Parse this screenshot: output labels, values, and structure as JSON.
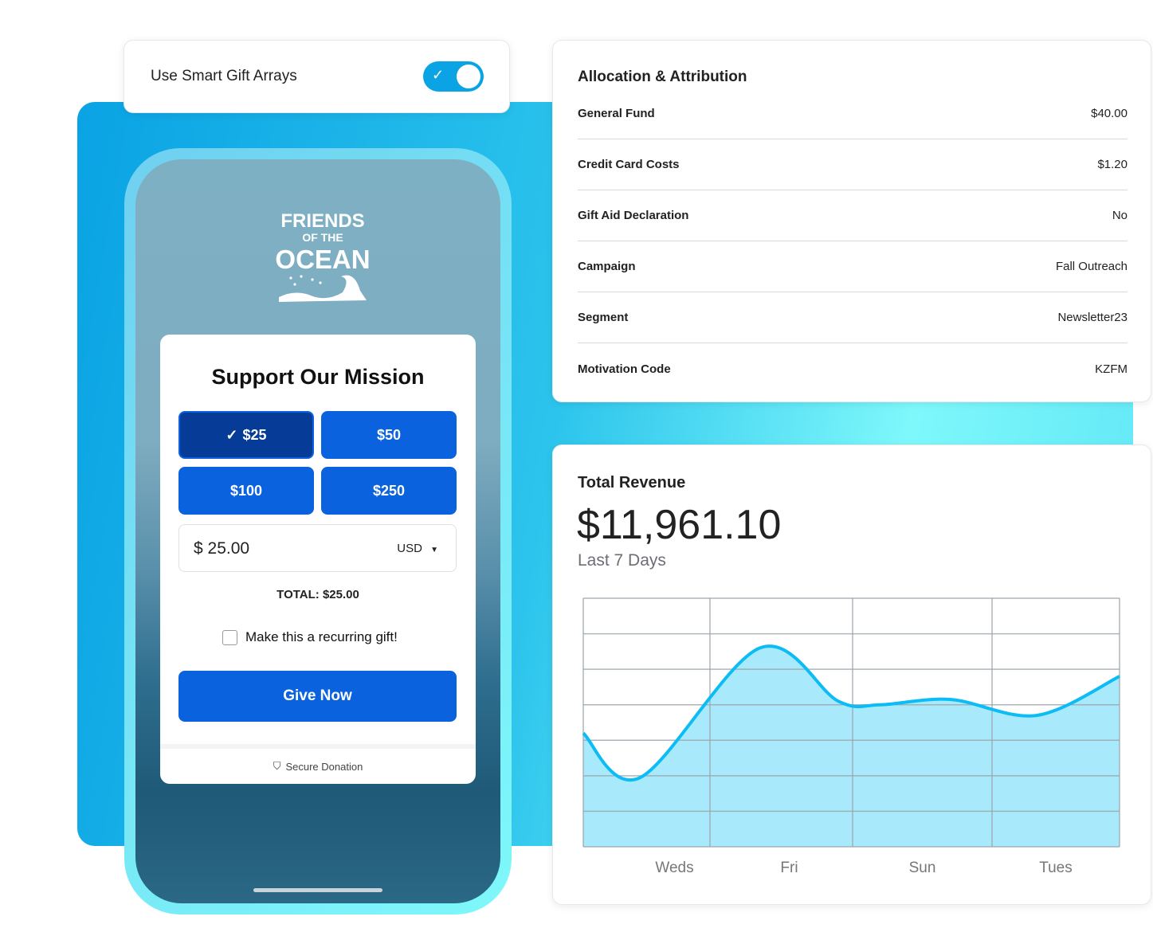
{
  "toggle": {
    "label": "Use Smart Gift Arrays",
    "on": true
  },
  "phone": {
    "logo_text": "FRIENDS OF THE OCEAN",
    "title": "Support Our Mission",
    "amounts": [
      "$25",
      "$50",
      "$100",
      "$250"
    ],
    "selected_amount": "$25",
    "amount_value": "25.00",
    "currency_symbol": "$",
    "currency": "USD",
    "total": "TOTAL: $25.00",
    "recurring_label": "Make this a recurring gift!",
    "recurring_checked": false,
    "give_button": "Give Now",
    "secure_label": "Secure Donation",
    "accent": "#0a62de"
  },
  "allocation": {
    "title": "Allocation & Attribution",
    "rows": [
      {
        "label": "General Fund",
        "value": "$40.00"
      },
      {
        "label": "Credit Card Costs",
        "value": "$1.20"
      },
      {
        "label": "Gift Aid Declaration",
        "value": "No"
      },
      {
        "label": "Campaign",
        "value": "Fall Outreach"
      },
      {
        "label": "Segment",
        "value": "Newsletter23"
      },
      {
        "label": "Motivation Code",
        "value": "KZFM"
      }
    ]
  },
  "revenue": {
    "title": "Total Revenue",
    "amount": "$11,961.10",
    "period": "Last 7 Days"
  },
  "chart_data": {
    "type": "area",
    "categories": [
      "Weds",
      "Fri",
      "Sun",
      "Tues"
    ],
    "x": [
      0,
      0.45,
      1.35,
      1.9,
      2.2,
      2.7,
      3.35,
      4
    ],
    "y": [
      3.2,
      1.95,
      5.6,
      4.1,
      4.0,
      4.15,
      3.7,
      4.8
    ],
    "ylim": [
      0,
      7
    ],
    "grid": true,
    "line_color": "#0bbcf5",
    "fill_color": "#a8eafb"
  }
}
